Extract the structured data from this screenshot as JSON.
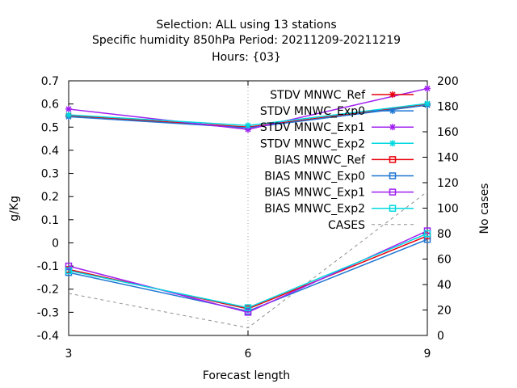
{
  "chart_data": {
    "type": "line",
    "title_lines": [
      "Selection: ALL using    13 stations",
      "Specific humidity 850hPa   Period: 20211209-20211219",
      "Hours: {03}"
    ],
    "xlabel": "Forecast length",
    "ylabel": "g/Kg",
    "y2label": "No cases",
    "x": [
      3,
      6,
      9
    ],
    "xlim": [
      3,
      9
    ],
    "ylim": [
      -0.4,
      0.7
    ],
    "y2lim": [
      0,
      200
    ],
    "xticks": [
      "3",
      "6",
      "9"
    ],
    "yticks": [
      "-0.4",
      "-0.3",
      "-0.2",
      "-0.1",
      "0",
      "0.1",
      "0.2",
      "0.3",
      "0.4",
      "0.5",
      "0.6",
      "0.7"
    ],
    "y2ticks": [
      "0",
      "20",
      "40",
      "60",
      "80",
      "100",
      "120",
      "140",
      "160",
      "180",
      "200"
    ],
    "grid": "vertical lines at x ticks (dotted)",
    "legend_position": "top-right",
    "series": [
      {
        "name": "STDV MNWC_Ref",
        "axis": "y",
        "color": "#e8000b",
        "marker": "star",
        "dash": "",
        "values": [
          0.55,
          0.5,
          0.6
        ]
      },
      {
        "name": "STDV MNWC_Exp0",
        "axis": "y",
        "color": "#1f77d4",
        "marker": "star",
        "dash": "",
        "values": [
          0.545,
          0.497,
          0.595
        ]
      },
      {
        "name": "STDV MNWC_Exp1",
        "axis": "y",
        "color": "#a020f0",
        "marker": "star",
        "dash": "",
        "values": [
          0.578,
          0.49,
          0.667
        ]
      },
      {
        "name": "STDV MNWC_Exp2",
        "axis": "y",
        "color": "#00d8e0",
        "marker": "star",
        "dash": "",
        "values": [
          0.553,
          0.507,
          0.602
        ]
      },
      {
        "name": "BIAS MNWC_Ref",
        "axis": "y",
        "color": "#e8000b",
        "marker": "square",
        "dash": "",
        "values": [
          -0.115,
          -0.285,
          0.03
        ]
      },
      {
        "name": "BIAS MNWC_Exp0",
        "axis": "y",
        "color": "#1f77d4",
        "marker": "square",
        "dash": "",
        "values": [
          -0.128,
          -0.295,
          0.015
        ]
      },
      {
        "name": "BIAS MNWC_Exp1",
        "axis": "y",
        "color": "#a020f0",
        "marker": "square",
        "dash": "",
        "values": [
          -0.1,
          -0.3,
          0.052
        ]
      },
      {
        "name": "BIAS MNWC_Exp2",
        "axis": "y",
        "color": "#00d8e0",
        "marker": "square",
        "dash": "",
        "values": [
          -0.12,
          -0.28,
          0.04
        ]
      },
      {
        "name": "CASES",
        "axis": "y2",
        "color": "#909090",
        "marker": "",
        "dash": "4,4",
        "values": [
          33,
          6,
          113
        ]
      }
    ]
  }
}
